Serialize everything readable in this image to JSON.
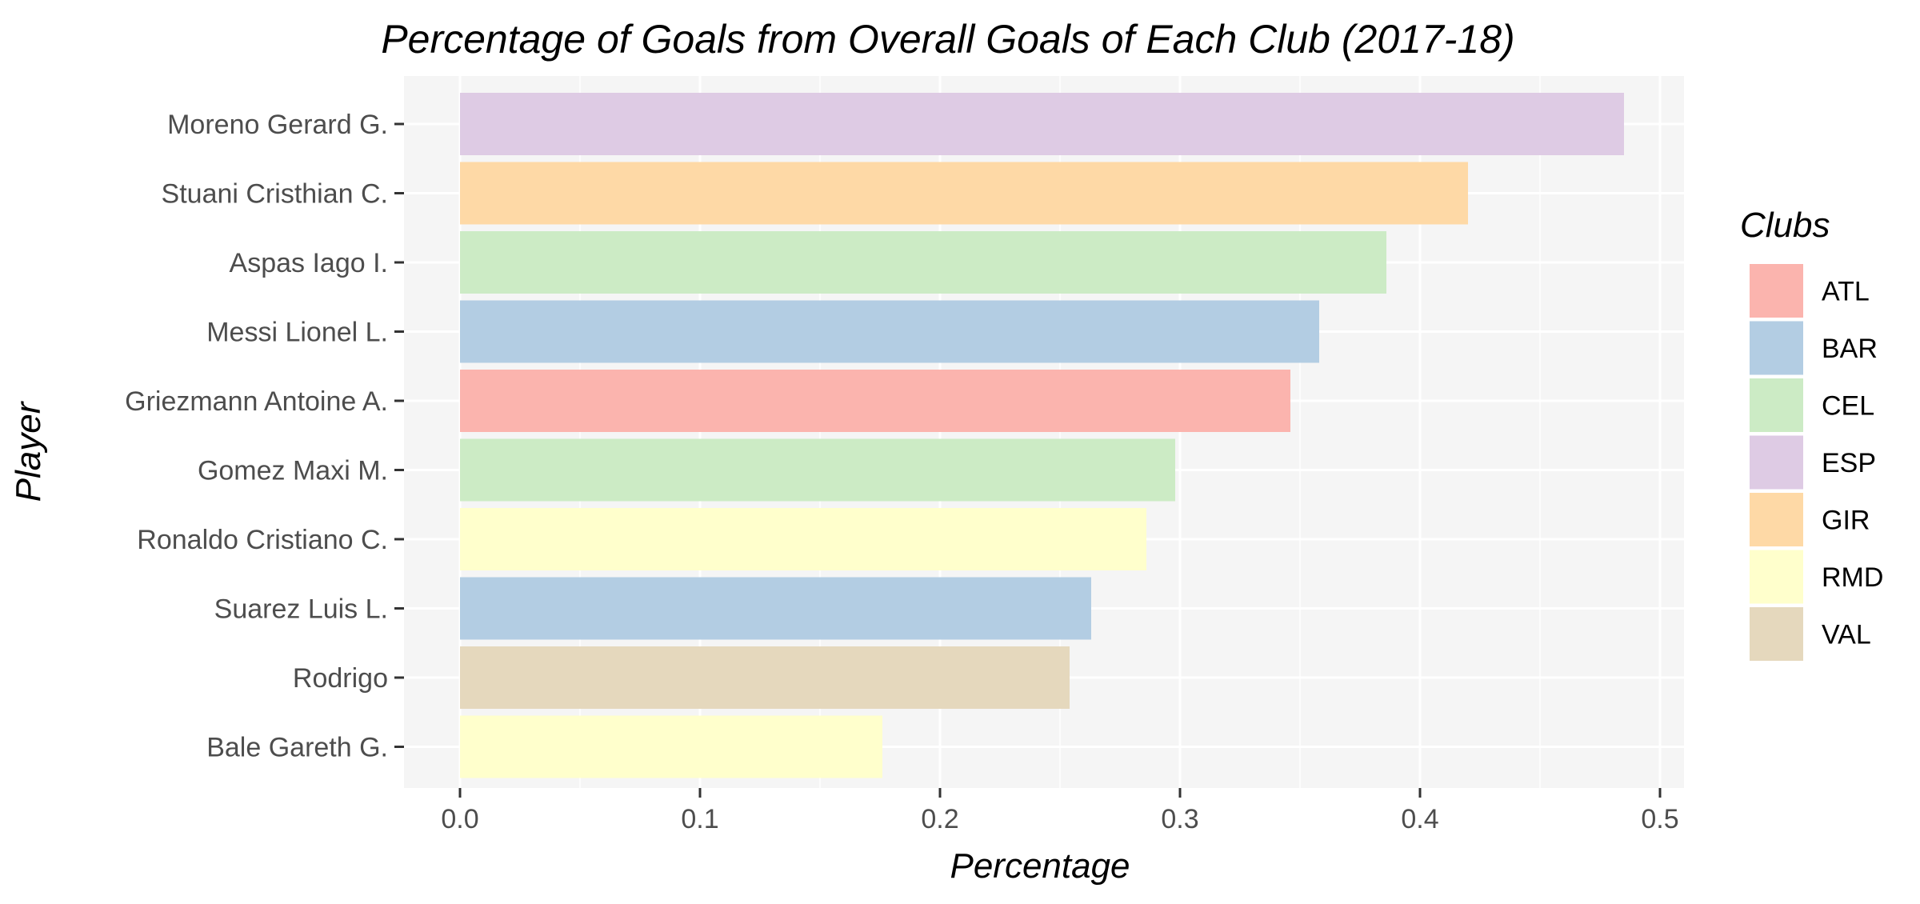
{
  "chart_data": {
    "type": "bar",
    "orientation": "horizontal",
    "title": "Percentage of Goals from Overall Goals of Each Club (2017-18)",
    "xlabel": "Percentage",
    "ylabel": "Player",
    "xlim": [
      0,
      0.5
    ],
    "xticks": [
      "0.0",
      "0.1",
      "0.2",
      "0.3",
      "0.4",
      "0.5"
    ],
    "grid": true,
    "legend": {
      "title": "Clubs",
      "position": "right",
      "entries": [
        {
          "label": "ATL",
          "color": "#FBB4AE"
        },
        {
          "label": "BAR",
          "color": "#B3CDE3"
        },
        {
          "label": "CEL",
          "color": "#CCEBC5"
        },
        {
          "label": "ESP",
          "color": "#DECBE4"
        },
        {
          "label": "GIR",
          "color": "#FED9A6"
        },
        {
          "label": "RMD",
          "color": "#FFFFCC"
        },
        {
          "label": "VAL",
          "color": "#E5D8BD"
        }
      ]
    },
    "bars": [
      {
        "player": "Moreno Gerard G.",
        "club": "ESP",
        "value": 0.485
      },
      {
        "player": "Stuani Cristhian C.",
        "club": "GIR",
        "value": 0.42
      },
      {
        "player": "Aspas Iago I.",
        "club": "CEL",
        "value": 0.386
      },
      {
        "player": "Messi Lionel L.",
        "club": "BAR",
        "value": 0.358
      },
      {
        "player": "Griezmann Antoine A.",
        "club": "ATL",
        "value": 0.346
      },
      {
        "player": "Gomez Maxi M.",
        "club": "CEL",
        "value": 0.298
      },
      {
        "player": "Ronaldo Cristiano C.",
        "club": "RMD",
        "value": 0.286
      },
      {
        "player": "Suarez Luis L.",
        "club": "BAR",
        "value": 0.263
      },
      {
        "player": "Rodrigo",
        "club": "VAL",
        "value": 0.254
      },
      {
        "player": "Bale Gareth G.",
        "club": "RMD",
        "value": 0.176
      }
    ]
  },
  "colors": {
    "panel_background": "#F5F5F5",
    "grid_line": "#FFFFFF",
    "tick_label": "#4D4D4D",
    "tick_mark": "#333333"
  }
}
